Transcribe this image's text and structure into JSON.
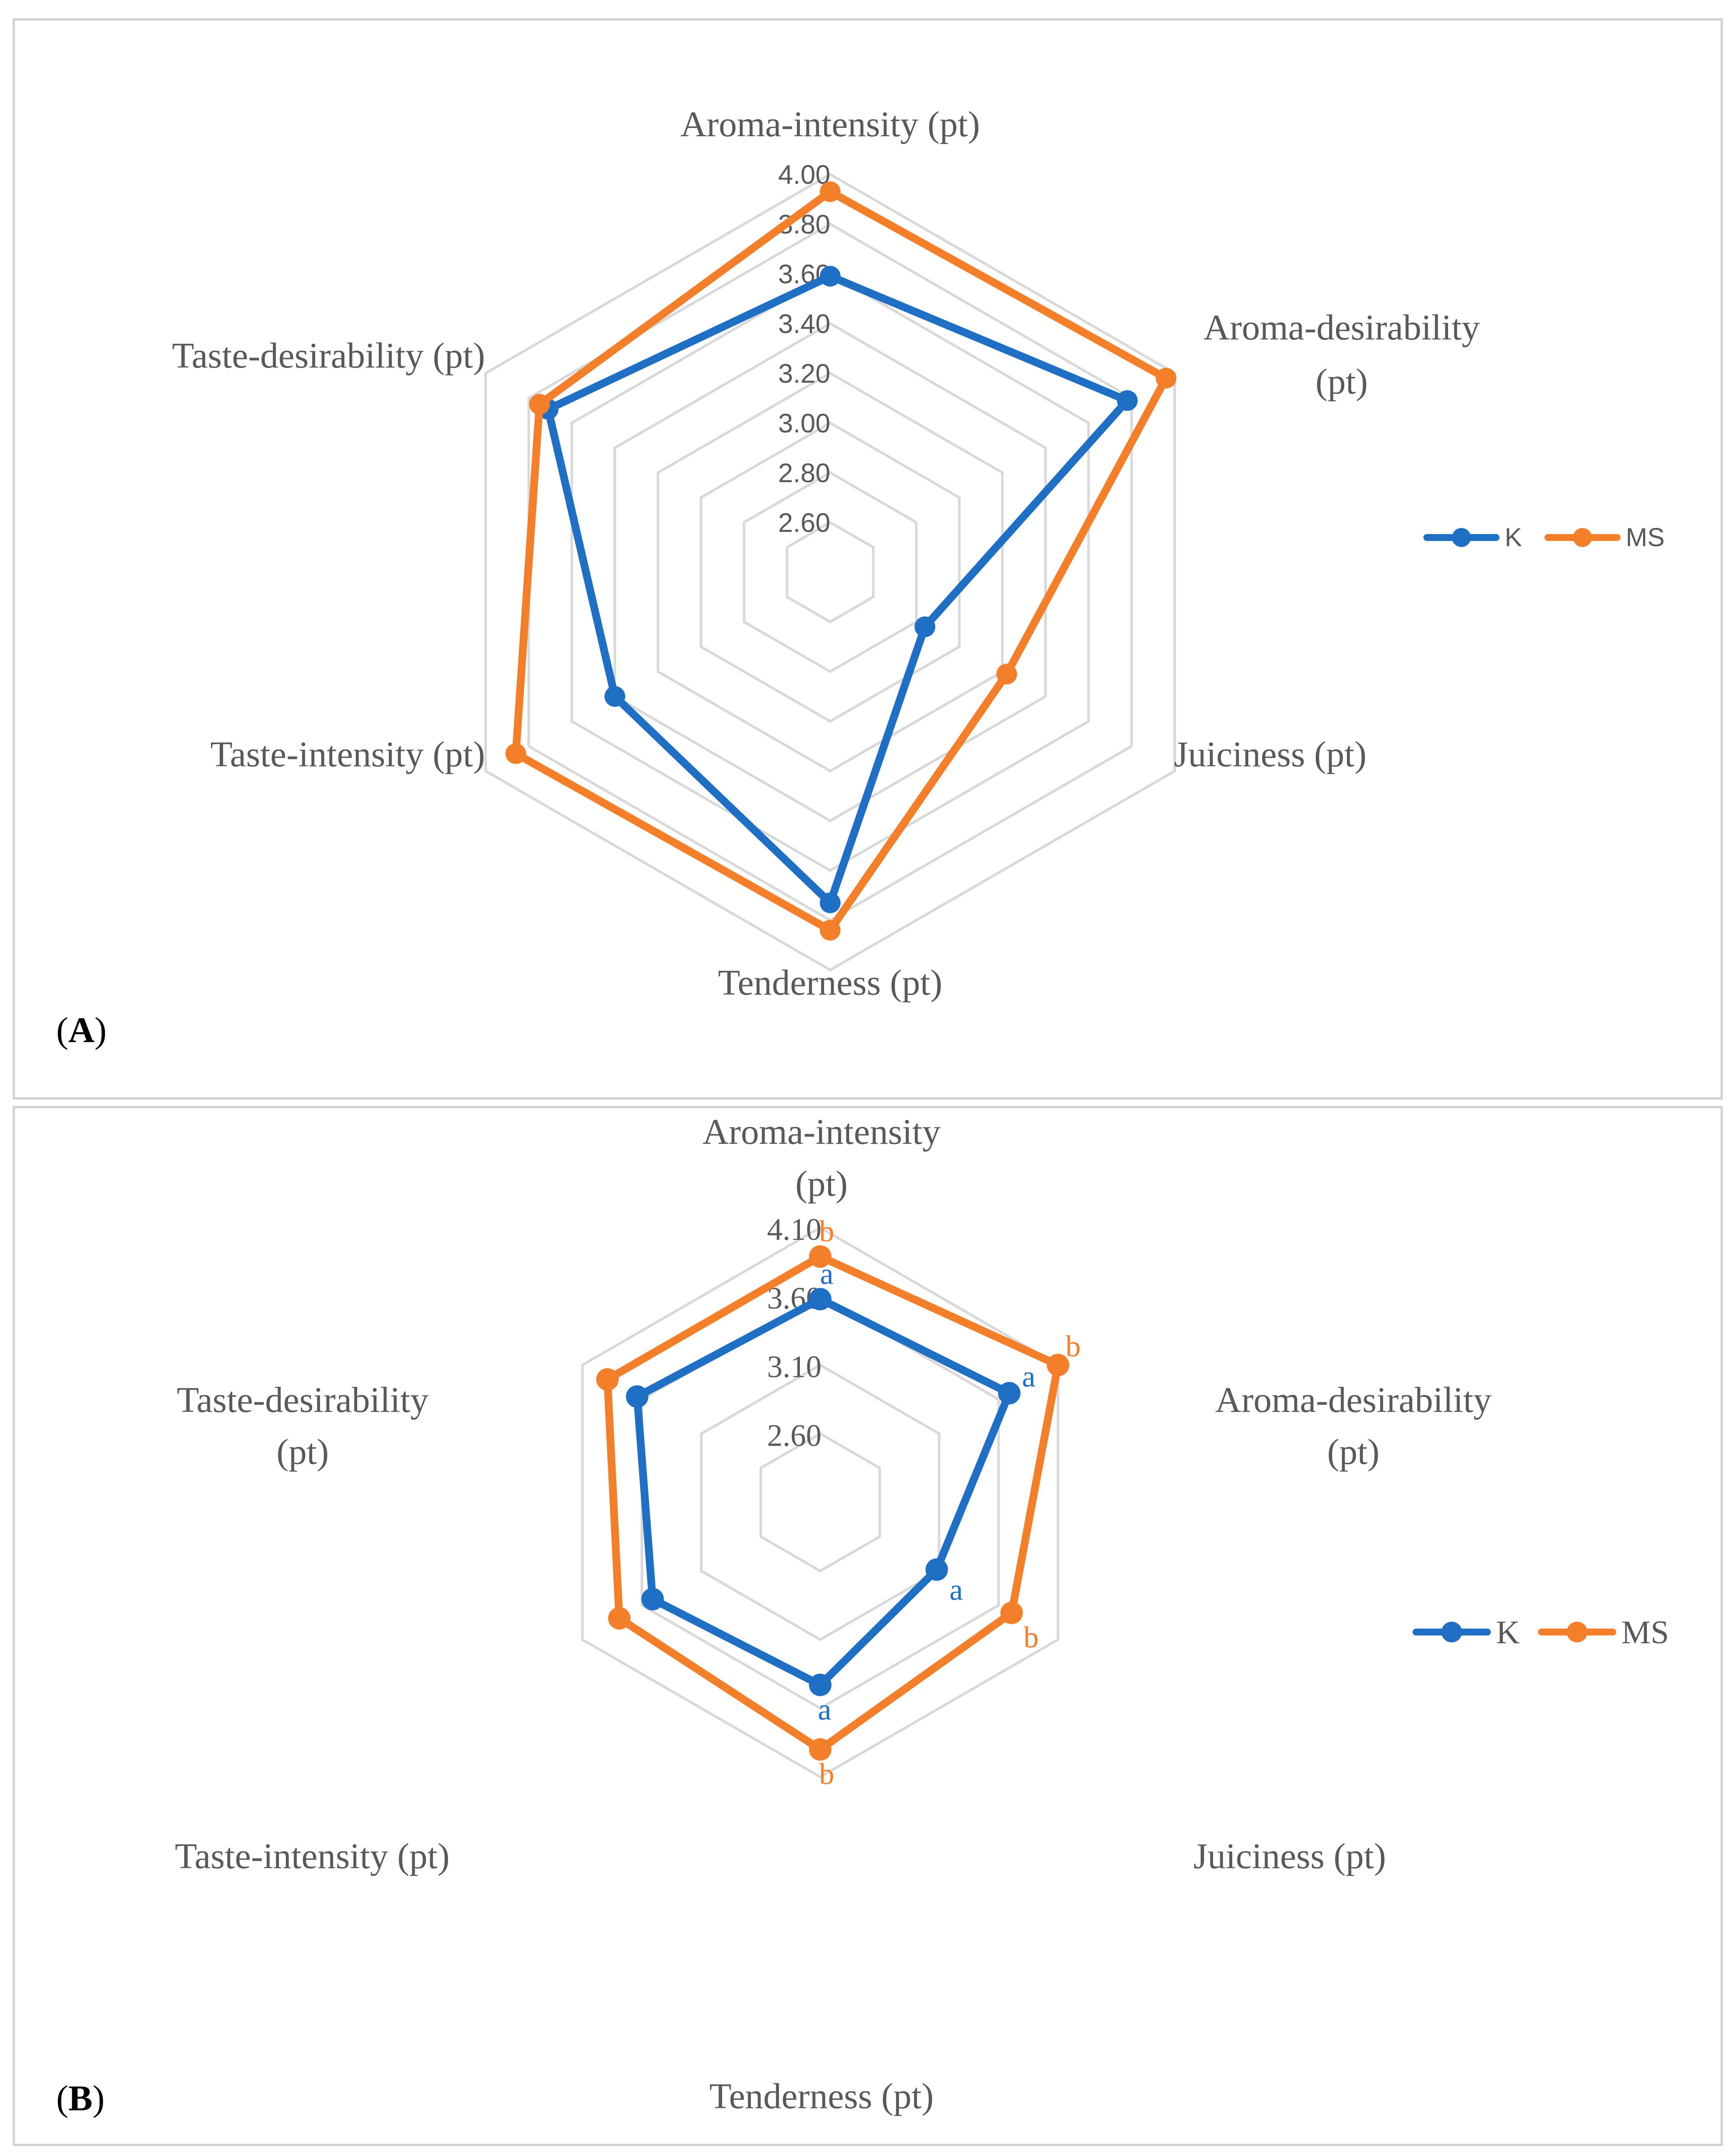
{
  "chart_data": [
    {
      "type": "radar",
      "panel_label": "A",
      "axes": [
        "Aroma-intensity (pt)",
        "Aroma-desirability (pt)",
        "Juiciness (pt)",
        "Tenderness (pt)",
        "Taste-intensity (pt)",
        "Taste-desirability (pt)"
      ],
      "axis_range": [
        2.4,
        4.0
      ],
      "ticks": [
        "2.60",
        "2.80",
        "3.00",
        "3.20",
        "3.40",
        "3.60",
        "3.80",
        "4.00"
      ],
      "grid": true,
      "legend_position": "right",
      "series": [
        {
          "name": "K",
          "color": "#1f6fc5",
          "values": [
            3.59,
            3.78,
            2.84,
            3.73,
            3.4,
            3.71
          ]
        },
        {
          "name": "MS",
          "color": "#f47f2a",
          "values": [
            3.93,
            3.96,
            3.22,
            3.84,
            3.86,
            3.75
          ]
        }
      ]
    },
    {
      "type": "radar",
      "panel_label": "B",
      "axes": [
        "Aroma-intensity (pt)",
        "Aroma-desirability (pt)",
        "Juiciness (pt)",
        "Tenderness (pt)",
        "Taste-intensity (pt)",
        "Taste-desirability (pt)"
      ],
      "axis_range": [
        2.1,
        4.1
      ],
      "ticks": [
        "2.60",
        "3.10",
        "3.60",
        "4.10"
      ],
      "grid": true,
      "legend_position": "right",
      "series": [
        {
          "name": "K",
          "color": "#1f6fc5",
          "values": [
            3.58,
            3.69,
            3.08,
            3.43,
            3.51,
            3.64
          ],
          "labels": [
            "a",
            "a",
            "a",
            "a",
            "",
            ""
          ]
        },
        {
          "name": "MS",
          "color": "#f47f2a",
          "values": [
            3.89,
            4.1,
            3.71,
            3.9,
            3.79,
            3.89
          ],
          "labels": [
            "b",
            "b",
            "b",
            "b",
            "",
            ""
          ]
        }
      ]
    }
  ]
}
